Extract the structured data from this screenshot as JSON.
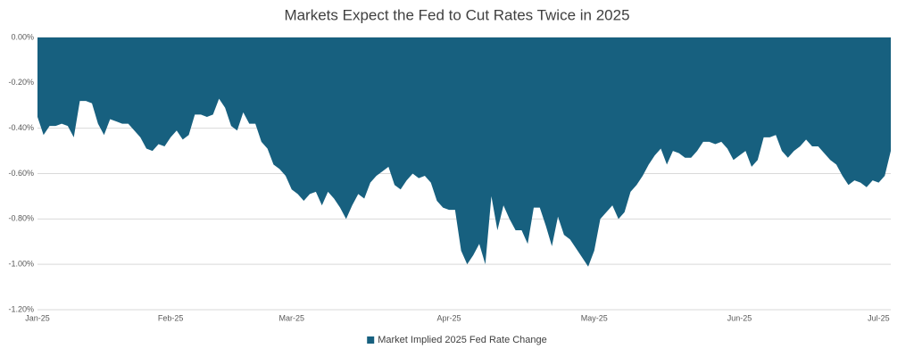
{
  "chart_data": {
    "type": "area",
    "title": "Markets Expect the Fed to Cut Rates Twice in 2025",
    "categories": [
      "Jan-25",
      null,
      null,
      null,
      null,
      null,
      null,
      null,
      null,
      null,
      null,
      null,
      null,
      null,
      null,
      null,
      null,
      null,
      null,
      null,
      null,
      null,
      "Feb-25",
      null,
      null,
      null,
      null,
      null,
      null,
      null,
      null,
      null,
      null,
      null,
      null,
      null,
      null,
      null,
      null,
      null,
      null,
      null,
      "Mar-25",
      null,
      null,
      null,
      null,
      null,
      null,
      null,
      null,
      null,
      null,
      null,
      null,
      null,
      null,
      null,
      null,
      null,
      null,
      null,
      null,
      null,
      null,
      null,
      null,
      null,
      "Apr-25",
      null,
      null,
      null,
      null,
      null,
      null,
      null,
      null,
      null,
      null,
      null,
      null,
      null,
      null,
      null,
      null,
      null,
      null,
      null,
      null,
      null,
      null,
      null,
      "May-25",
      null,
      null,
      null,
      null,
      null,
      null,
      null,
      null,
      null,
      null,
      null,
      null,
      null,
      null,
      null,
      null,
      null,
      null,
      null,
      null,
      null,
      null,
      null,
      "Jun-25",
      null,
      null,
      null,
      null,
      null,
      null,
      null,
      null,
      null,
      null,
      null,
      null,
      null,
      null,
      null,
      null,
      null,
      null,
      null,
      null,
      null,
      null,
      "Jul-25",
      null,
      null
    ],
    "series": [
      {
        "name": "Market Implied 2025 Fed Rate Change",
        "color": "#17607f",
        "values": [
          -0.35,
          -0.43,
          -0.39,
          -0.39,
          -0.38,
          -0.39,
          -0.44,
          -0.28,
          -0.28,
          -0.29,
          -0.38,
          -0.43,
          -0.36,
          -0.37,
          -0.38,
          -0.38,
          -0.41,
          -0.44,
          -0.49,
          -0.5,
          -0.47,
          -0.48,
          -0.44,
          -0.41,
          -0.45,
          -0.43,
          -0.34,
          -0.34,
          -0.35,
          -0.34,
          -0.27,
          -0.31,
          -0.39,
          -0.41,
          -0.33,
          -0.38,
          -0.38,
          -0.46,
          -0.49,
          -0.56,
          -0.58,
          -0.61,
          -0.67,
          -0.69,
          -0.72,
          -0.69,
          -0.68,
          -0.74,
          -0.68,
          -0.71,
          -0.75,
          -0.8,
          -0.74,
          -0.69,
          -0.71,
          -0.64,
          -0.61,
          -0.59,
          -0.57,
          -0.65,
          -0.67,
          -0.63,
          -0.6,
          -0.62,
          -0.61,
          -0.64,
          -0.72,
          -0.75,
          -0.76,
          -0.76,
          -0.94,
          -1.0,
          -0.96,
          -0.91,
          -1.0,
          -0.7,
          -0.85,
          -0.74,
          -0.8,
          -0.85,
          -0.85,
          -0.91,
          -0.75,
          -0.75,
          -0.83,
          -0.92,
          -0.79,
          -0.87,
          -0.89,
          -0.93,
          -0.97,
          -1.01,
          -0.94,
          -0.8,
          -0.77,
          -0.74,
          -0.8,
          -0.77,
          -0.68,
          -0.65,
          -0.61,
          -0.56,
          -0.52,
          -0.49,
          -0.56,
          -0.5,
          -0.51,
          -0.53,
          -0.53,
          -0.5,
          -0.46,
          -0.46,
          -0.47,
          -0.46,
          -0.49,
          -0.54,
          -0.52,
          -0.5,
          -0.57,
          -0.54,
          -0.44,
          -0.44,
          -0.43,
          -0.5,
          -0.53,
          -0.5,
          -0.48,
          -0.45,
          -0.48,
          -0.48,
          -0.51,
          -0.54,
          -0.56,
          -0.61,
          -0.65,
          -0.63,
          -0.64,
          -0.66,
          -0.63,
          -0.64,
          -0.61,
          -0.5
        ]
      }
    ],
    "ylim": [
      -1.2,
      0
    ],
    "yticks": [
      {
        "value": 0,
        "label": "0.00%"
      },
      {
        "value": -0.2,
        "label": "-0.20%"
      },
      {
        "value": -0.4,
        "label": "-0.40%"
      },
      {
        "value": -0.6,
        "label": "-0.60%"
      },
      {
        "value": -0.8,
        "label": "-0.80%"
      },
      {
        "value": -1.0,
        "label": "-1.00%"
      },
      {
        "value": -1.2,
        "label": "-1.20%"
      }
    ],
    "grid": true,
    "legend": "bottom"
  }
}
